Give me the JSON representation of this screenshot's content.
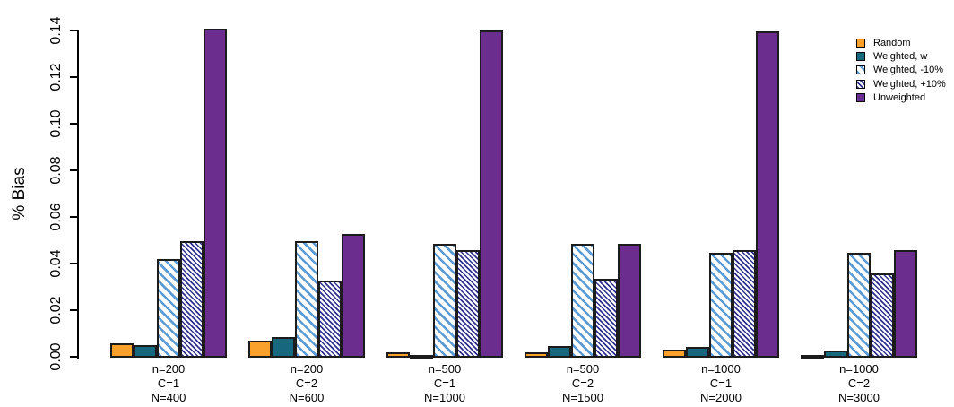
{
  "figure": {
    "background": "#ffffff",
    "axis_color": "#000000",
    "bar_border_color": "#1c1c1c"
  },
  "chart_data": {
    "type": "bar",
    "title": "",
    "xlabel": "",
    "ylabel": "% Bias",
    "ylim": [
      0,
      0.14
    ],
    "ytick_values": [
      0,
      0.02,
      0.04,
      0.06,
      0.08,
      0.1,
      0.12,
      0.14
    ],
    "ytick_labels": [
      "0.00",
      "0.02",
      "0.04",
      "0.06",
      "0.08",
      "0.10",
      "0.12",
      "0.14"
    ],
    "grid": false,
    "legend_position": "top-right",
    "categories": [
      [
        "n=200",
        "C=1",
        "N=400"
      ],
      [
        "n=200",
        "C=2",
        "N=600"
      ],
      [
        "n=500",
        "C=1",
        "N=1000"
      ],
      [
        "n=500",
        "C=2",
        "N=1500"
      ],
      [
        "n=1000",
        "C=1",
        "N=2000"
      ],
      [
        "n=1000",
        "C=2",
        "N=3000"
      ]
    ],
    "series": [
      {
        "name": "Random",
        "pattern": "solid",
        "color": "#F9A12B",
        "values": [
          0.006,
          0.0075,
          0.0023,
          0.0023,
          0.0035,
          0.001
        ]
      },
      {
        "name": "Weighted, w",
        "pattern": "solid",
        "color": "#17687F",
        "values": [
          0.0055,
          0.009,
          0.0003,
          0.005,
          0.0045,
          0.003
        ]
      },
      {
        "name": "Weighted, -10%",
        "pattern": "hatch-light",
        "color": "#5B9BD5",
        "hatch_background": "#FFFFFF",
        "values": [
          0.0425,
          0.05,
          0.049,
          0.049,
          0.045,
          0.045
        ]
      },
      {
        "name": "Weighted, +10%",
        "pattern": "hatch-dense",
        "color": "#2E3192",
        "hatch_background": "#FFFFFF",
        "values": [
          0.05,
          0.033,
          0.046,
          0.034,
          0.046,
          0.036
        ]
      },
      {
        "name": "Unweighted",
        "pattern": "solid",
        "color": "#6B2E8E",
        "values": [
          0.141,
          0.053,
          0.1405,
          0.049,
          0.14,
          0.046
        ]
      }
    ]
  }
}
